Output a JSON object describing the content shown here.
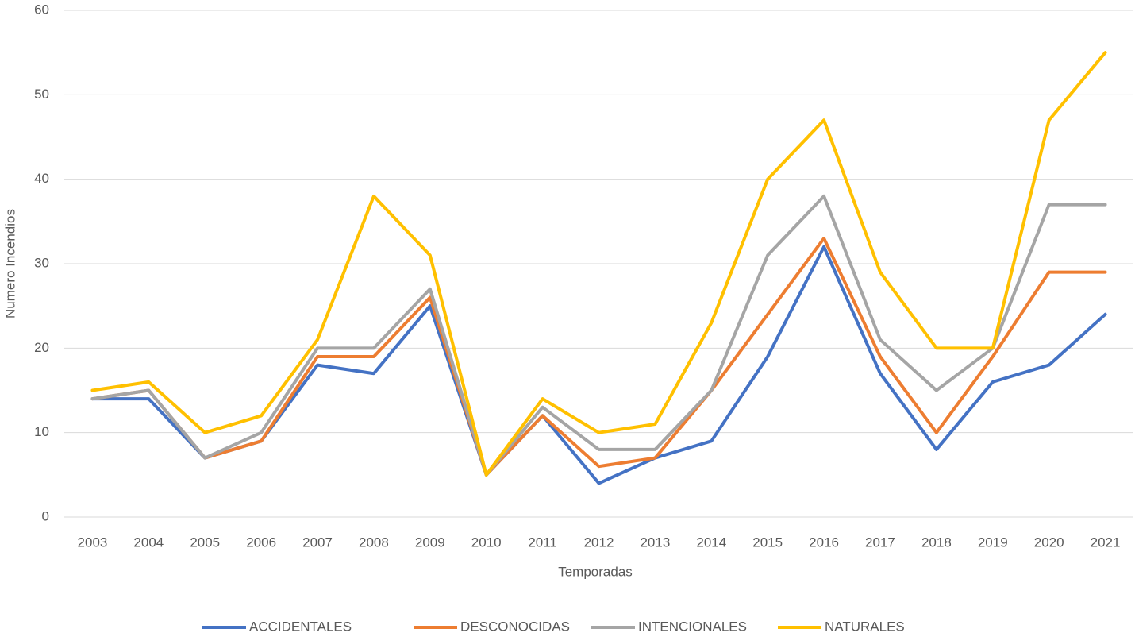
{
  "chart_data": {
    "type": "line",
    "x_label": "Temporadas",
    "y_label": "Numero Incendios",
    "categories": [
      "2003",
      "2004",
      "2005",
      "2006",
      "2007",
      "2008",
      "2009",
      "2010",
      "2011",
      "2012",
      "2013",
      "2014",
      "2015",
      "2016",
      "2017",
      "2018",
      "2019",
      "2020",
      "2021"
    ],
    "series": [
      {
        "name": "ACCIDENTALES",
        "color": "#4472c4",
        "values": [
          14,
          14,
          7,
          9,
          18,
          17,
          25,
          5,
          12,
          4,
          7,
          9,
          19,
          32,
          17,
          8,
          16,
          18,
          24
        ]
      },
      {
        "name": "DESCONOCIDAS",
        "color": "#ed7d31",
        "values": [
          14,
          15,
          7,
          9,
          19,
          19,
          26,
          5,
          12,
          6,
          7,
          15,
          24,
          33,
          19,
          10,
          19,
          29,
          29
        ]
      },
      {
        "name": "INTENCIONALES",
        "color": "#a5a5a5",
        "values": [
          14,
          15,
          7,
          10,
          20,
          20,
          27,
          5,
          13,
          8,
          8,
          15,
          31,
          38,
          21,
          15,
          20,
          37,
          37
        ]
      },
      {
        "name": "NATURALES",
        "color": "#ffc000",
        "values": [
          15,
          16,
          10,
          12,
          21,
          38,
          31,
          5,
          14,
          10,
          11,
          23,
          40,
          47,
          29,
          20,
          20,
          47,
          55
        ]
      }
    ],
    "ylim": [
      0,
      60
    ],
    "yticks": [
      0,
      10,
      20,
      30,
      40,
      50,
      60
    ],
    "grid": true,
    "legend": "bottom"
  }
}
